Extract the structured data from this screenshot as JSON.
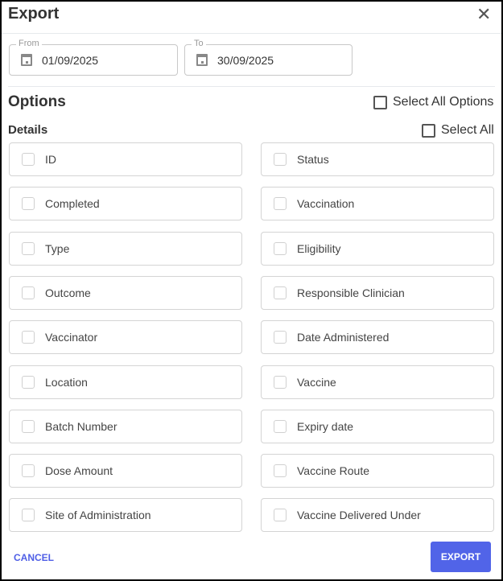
{
  "dialog": {
    "title": "Export",
    "close_icon": "close-icon"
  },
  "dates": {
    "from_label": "From",
    "from_value": "01/09/2025",
    "to_label": "To",
    "to_value": "30/09/2025"
  },
  "options": {
    "heading": "Options",
    "select_all_options": "Select All Options"
  },
  "details": {
    "heading": "Details",
    "select_all": "Select All",
    "left": [
      "ID",
      "Completed",
      "Type",
      "Outcome",
      "Vaccinator",
      "Location",
      "Batch Number",
      "Dose Amount",
      "Site of Administration"
    ],
    "right": [
      "Status",
      "Vaccination",
      "Eligibility",
      "Responsible Clinician",
      "Date Administered",
      "Vaccine",
      "Expiry date",
      "Vaccine Route",
      "Vaccine Delivered Under"
    ]
  },
  "footer": {
    "cancel": "CANCEL",
    "export": "EXPORT"
  },
  "colors": {
    "accent": "#5164e8"
  }
}
